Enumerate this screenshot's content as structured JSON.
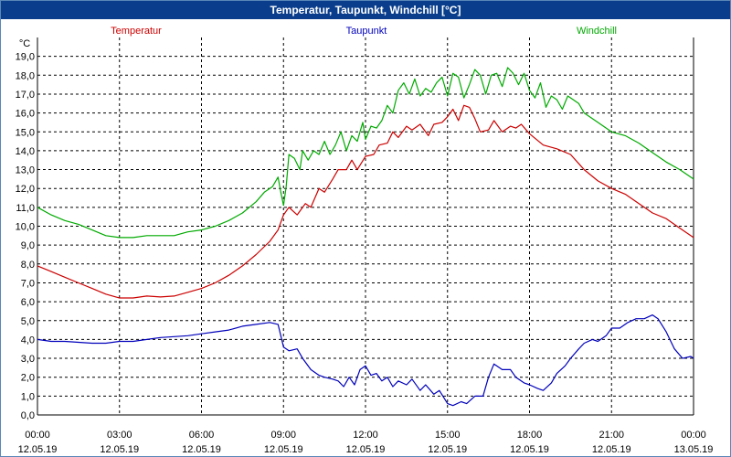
{
  "window": {
    "title": "Temperatur, Taupunkt, Windchill [°C]"
  },
  "chart_data": {
    "type": "line",
    "title": "Temperatur, Taupunkt, Windchill [°C]",
    "yunit": "°C",
    "ylim": [
      0,
      20
    ],
    "xlim": [
      0,
      24
    ],
    "grid": true,
    "legend_position": "top",
    "yticks": [
      {
        "v": 0,
        "label": "0,0"
      },
      {
        "v": 1,
        "label": "1,0"
      },
      {
        "v": 2,
        "label": "2,0"
      },
      {
        "v": 3,
        "label": "3,0"
      },
      {
        "v": 4,
        "label": "4,0"
      },
      {
        "v": 5,
        "label": "5,0"
      },
      {
        "v": 6,
        "label": "6,0"
      },
      {
        "v": 7,
        "label": "7,0"
      },
      {
        "v": 8,
        "label": "8,0"
      },
      {
        "v": 9,
        "label": "9,0"
      },
      {
        "v": 10,
        "label": "10,0"
      },
      {
        "v": 11,
        "label": "11,0"
      },
      {
        "v": 12,
        "label": "12,0"
      },
      {
        "v": 13,
        "label": "13,0"
      },
      {
        "v": 14,
        "label": "14,0"
      },
      {
        "v": 15,
        "label": "15,0"
      },
      {
        "v": 16,
        "label": "16,0"
      },
      {
        "v": 17,
        "label": "17,0"
      },
      {
        "v": 18,
        "label": "18,0"
      },
      {
        "v": 19,
        "label": "19,0"
      }
    ],
    "xticks": [
      {
        "h": 0,
        "time": "00:00",
        "date": "12.05.19"
      },
      {
        "h": 3,
        "time": "03:00",
        "date": "12.05.19"
      },
      {
        "h": 6,
        "time": "06:00",
        "date": "12.05.19"
      },
      {
        "h": 9,
        "time": "09:00",
        "date": "12.05.19"
      },
      {
        "h": 12,
        "time": "12:00",
        "date": "12.05.19"
      },
      {
        "h": 15,
        "time": "15:00",
        "date": "12.05.19"
      },
      {
        "h": 18,
        "time": "18:00",
        "date": "12.05.19"
      },
      {
        "h": 21,
        "time": "21:00",
        "date": "12.05.19"
      },
      {
        "h": 24,
        "time": "00:00",
        "date": "13.05.19"
      }
    ],
    "series": [
      {
        "name": "Temperatur",
        "color": "#cc0000",
        "points": [
          [
            0,
            7.9
          ],
          [
            0.5,
            7.6
          ],
          [
            1,
            7.3
          ],
          [
            1.5,
            7.0
          ],
          [
            2,
            6.7
          ],
          [
            2.5,
            6.4
          ],
          [
            3,
            6.2
          ],
          [
            3.5,
            6.2
          ],
          [
            4,
            6.3
          ],
          [
            4.5,
            6.25
          ],
          [
            5,
            6.3
          ],
          [
            5.5,
            6.5
          ],
          [
            6,
            6.7
          ],
          [
            6.5,
            7.0
          ],
          [
            7,
            7.4
          ],
          [
            7.5,
            7.9
          ],
          [
            8,
            8.5
          ],
          [
            8.5,
            9.2
          ],
          [
            8.8,
            9.8
          ],
          [
            9,
            10.6
          ],
          [
            9.2,
            11.0
          ],
          [
            9.5,
            10.6
          ],
          [
            9.8,
            11.2
          ],
          [
            10,
            11.0
          ],
          [
            10.3,
            12.0
          ],
          [
            10.5,
            11.8
          ],
          [
            10.8,
            12.5
          ],
          [
            11,
            13.0
          ],
          [
            11.3,
            13.0
          ],
          [
            11.5,
            13.5
          ],
          [
            11.7,
            13.0
          ],
          [
            12,
            13.7
          ],
          [
            12.3,
            13.8
          ],
          [
            12.5,
            14.3
          ],
          [
            12.8,
            14.4
          ],
          [
            13,
            15.0
          ],
          [
            13.2,
            14.7
          ],
          [
            13.5,
            15.3
          ],
          [
            13.7,
            15.1
          ],
          [
            14,
            15.4
          ],
          [
            14.3,
            14.8
          ],
          [
            14.5,
            15.4
          ],
          [
            14.8,
            15.5
          ],
          [
            15,
            15.8
          ],
          [
            15.2,
            16.2
          ],
          [
            15.4,
            15.6
          ],
          [
            15.6,
            16.4
          ],
          [
            15.8,
            16.3
          ],
          [
            16,
            15.7
          ],
          [
            16.2,
            15.0
          ],
          [
            16.5,
            15.1
          ],
          [
            16.7,
            15.6
          ],
          [
            17,
            15.0
          ],
          [
            17.3,
            15.3
          ],
          [
            17.5,
            15.2
          ],
          [
            17.7,
            15.4
          ],
          [
            18,
            14.9
          ],
          [
            18.5,
            14.3
          ],
          [
            19,
            14.1
          ],
          [
            19.5,
            13.8
          ],
          [
            20,
            13.0
          ],
          [
            20.5,
            12.4
          ],
          [
            21,
            12.0
          ],
          [
            21.5,
            11.7
          ],
          [
            22,
            11.2
          ],
          [
            22.5,
            10.7
          ],
          [
            23,
            10.4
          ],
          [
            23.5,
            9.9
          ],
          [
            24,
            9.4
          ]
        ]
      },
      {
        "name": "Taupunkt",
        "color": "#0000bb",
        "points": [
          [
            0,
            4.0
          ],
          [
            0.5,
            3.9
          ],
          [
            1,
            3.9
          ],
          [
            1.5,
            3.85
          ],
          [
            2,
            3.8
          ],
          [
            2.5,
            3.8
          ],
          [
            3,
            3.9
          ],
          [
            3.5,
            3.9
          ],
          [
            4,
            4.0
          ],
          [
            4.5,
            4.1
          ],
          [
            5,
            4.15
          ],
          [
            5.5,
            4.2
          ],
          [
            6,
            4.3
          ],
          [
            6.5,
            4.4
          ],
          [
            7,
            4.5
          ],
          [
            7.5,
            4.7
          ],
          [
            8,
            4.8
          ],
          [
            8.5,
            4.9
          ],
          [
            8.8,
            4.8
          ],
          [
            9,
            3.6
          ],
          [
            9.2,
            3.4
          ],
          [
            9.5,
            3.5
          ],
          [
            9.7,
            3.0
          ],
          [
            10,
            2.4
          ],
          [
            10.3,
            2.1
          ],
          [
            10.5,
            2.0
          ],
          [
            10.8,
            1.9
          ],
          [
            11,
            1.8
          ],
          [
            11.2,
            1.5
          ],
          [
            11.4,
            2.0
          ],
          [
            11.6,
            1.6
          ],
          [
            11.8,
            2.4
          ],
          [
            12,
            2.6
          ],
          [
            12.2,
            2.1
          ],
          [
            12.4,
            2.2
          ],
          [
            12.6,
            1.8
          ],
          [
            12.8,
            2.0
          ],
          [
            13,
            1.5
          ],
          [
            13.2,
            1.8
          ],
          [
            13.5,
            1.6
          ],
          [
            13.7,
            1.9
          ],
          [
            14,
            1.3
          ],
          [
            14.2,
            1.6
          ],
          [
            14.5,
            1.1
          ],
          [
            14.7,
            1.3
          ],
          [
            15,
            0.6
          ],
          [
            15.2,
            0.5
          ],
          [
            15.5,
            0.7
          ],
          [
            15.7,
            0.6
          ],
          [
            16,
            1.0
          ],
          [
            16.3,
            1.0
          ],
          [
            16.5,
            2.0
          ],
          [
            16.7,
            2.7
          ],
          [
            17,
            2.4
          ],
          [
            17.3,
            2.4
          ],
          [
            17.5,
            2.0
          ],
          [
            17.8,
            1.7
          ],
          [
            18,
            1.6
          ],
          [
            18.3,
            1.4
          ],
          [
            18.5,
            1.3
          ],
          [
            18.8,
            1.7
          ],
          [
            19,
            2.2
          ],
          [
            19.3,
            2.6
          ],
          [
            19.5,
            3.0
          ],
          [
            19.8,
            3.5
          ],
          [
            20,
            3.8
          ],
          [
            20.3,
            4.0
          ],
          [
            20.5,
            3.9
          ],
          [
            20.8,
            4.2
          ],
          [
            21,
            4.6
          ],
          [
            21.3,
            4.6
          ],
          [
            21.6,
            4.9
          ],
          [
            21.9,
            5.1
          ],
          [
            22.2,
            5.1
          ],
          [
            22.5,
            5.3
          ],
          [
            22.7,
            5.1
          ],
          [
            23,
            4.4
          ],
          [
            23.3,
            3.5
          ],
          [
            23.6,
            3.0
          ],
          [
            23.9,
            3.1
          ],
          [
            24,
            3.0
          ]
        ]
      },
      {
        "name": "Windchill",
        "color": "#00aa00",
        "points": [
          [
            0,
            11.0
          ],
          [
            0.5,
            10.6
          ],
          [
            1,
            10.3
          ],
          [
            1.5,
            10.1
          ],
          [
            2,
            9.8
          ],
          [
            2.5,
            9.5
          ],
          [
            3,
            9.4
          ],
          [
            3.5,
            9.4
          ],
          [
            4,
            9.5
          ],
          [
            4.5,
            9.5
          ],
          [
            5,
            9.5
          ],
          [
            5.5,
            9.7
          ],
          [
            6,
            9.8
          ],
          [
            6.5,
            10.0
          ],
          [
            7,
            10.3
          ],
          [
            7.5,
            10.7
          ],
          [
            8,
            11.3
          ],
          [
            8.3,
            11.8
          ],
          [
            8.6,
            12.1
          ],
          [
            8.8,
            12.6
          ],
          [
            8.9,
            11.8
          ],
          [
            9,
            11.1
          ],
          [
            9.1,
            12.1
          ],
          [
            9.2,
            13.8
          ],
          [
            9.4,
            13.6
          ],
          [
            9.6,
            13.0
          ],
          [
            9.7,
            14.0
          ],
          [
            9.9,
            13.5
          ],
          [
            10.1,
            14.0
          ],
          [
            10.3,
            13.8
          ],
          [
            10.5,
            14.5
          ],
          [
            10.7,
            13.8
          ],
          [
            10.9,
            14.3
          ],
          [
            11.1,
            15.0
          ],
          [
            11.3,
            14.0
          ],
          [
            11.5,
            14.8
          ],
          [
            11.7,
            14.5
          ],
          [
            11.9,
            15.5
          ],
          [
            12,
            14.6
          ],
          [
            12.2,
            15.3
          ],
          [
            12.4,
            15.2
          ],
          [
            12.6,
            15.6
          ],
          [
            12.8,
            16.4
          ],
          [
            13,
            16.0
          ],
          [
            13.2,
            17.2
          ],
          [
            13.4,
            17.6
          ],
          [
            13.6,
            17.0
          ],
          [
            13.8,
            17.8
          ],
          [
            14,
            16.9
          ],
          [
            14.2,
            17.3
          ],
          [
            14.4,
            17.1
          ],
          [
            14.6,
            17.6
          ],
          [
            14.8,
            17.9
          ],
          [
            15,
            16.9
          ],
          [
            15.2,
            18.1
          ],
          [
            15.4,
            17.9
          ],
          [
            15.6,
            16.8
          ],
          [
            15.8,
            17.5
          ],
          [
            16,
            18.3
          ],
          [
            16.2,
            18.0
          ],
          [
            16.4,
            17.0
          ],
          [
            16.6,
            18.0
          ],
          [
            16.8,
            18.1
          ],
          [
            17,
            17.4
          ],
          [
            17.2,
            18.4
          ],
          [
            17.4,
            18.1
          ],
          [
            17.6,
            17.5
          ],
          [
            17.8,
            18.1
          ],
          [
            18,
            17.2
          ],
          [
            18.2,
            16.8
          ],
          [
            18.4,
            17.6
          ],
          [
            18.6,
            16.3
          ],
          [
            18.8,
            16.9
          ],
          [
            19,
            16.7
          ],
          [
            19.2,
            16.2
          ],
          [
            19.4,
            16.9
          ],
          [
            19.6,
            16.7
          ],
          [
            19.8,
            16.5
          ],
          [
            20,
            16.0
          ],
          [
            20.5,
            15.5
          ],
          [
            21,
            15.0
          ],
          [
            21.5,
            14.8
          ],
          [
            22,
            14.4
          ],
          [
            22.5,
            13.9
          ],
          [
            23,
            13.4
          ],
          [
            23.5,
            13.0
          ],
          [
            24,
            12.5
          ]
        ]
      }
    ]
  }
}
